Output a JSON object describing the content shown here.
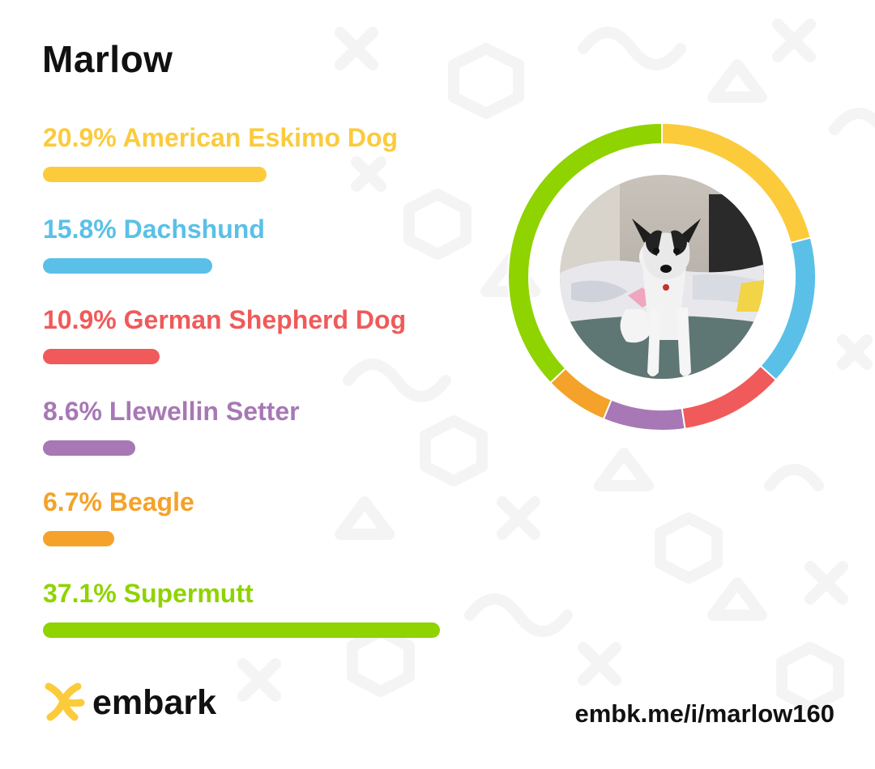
{
  "dog_name": "Marlow",
  "chart_data": {
    "type": "donut",
    "categories": [
      "American Eskimo Dog",
      "Dachshund",
      "German Shepherd Dog",
      "Llewellin Setter",
      "Beagle",
      "Supermutt"
    ],
    "values": [
      20.9,
      15.8,
      10.9,
      8.6,
      6.7,
      37.1
    ],
    "labels": [
      "20.9% American Eskimo Dog",
      "15.8% Dachshund",
      "10.9% German Shepherd Dog",
      "8.6% Llewellin Setter",
      "6.7% Beagle",
      "37.1% Supermutt"
    ],
    "colors": [
      "#fbcb3c",
      "#5ac0e8",
      "#f05a5a",
      "#a778b5",
      "#f4a229",
      "#8fd300"
    ],
    "unit": "%",
    "xlim": [
      0,
      100
    ]
  },
  "photo_icon": "dog-photo",
  "brand": {
    "name": "embark",
    "logo_icon": "embark-logo-icon",
    "accent": "#fbcb3c"
  },
  "share_url": "embk.me/i/marlow160"
}
